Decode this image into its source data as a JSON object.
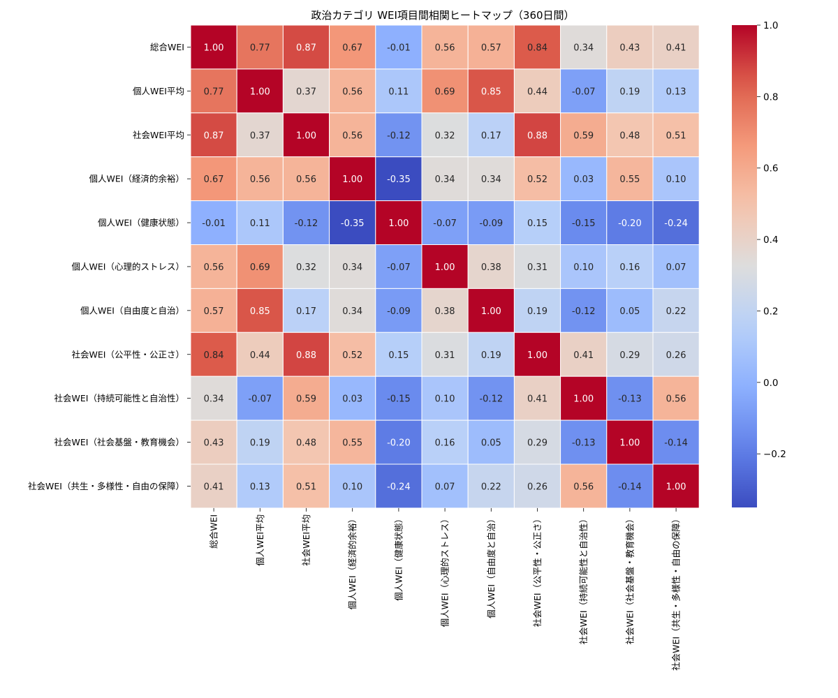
{
  "chart_data": {
    "type": "heatmap",
    "title": "政治カテゴリ WEI項目間相関ヒートマップ（360日間）",
    "labels": [
      "総合WEI",
      "個人WEI平均",
      "社会WEI平均",
      "個人WEI（経済的余裕）",
      "個人WEI（健康状態）",
      "個人WEI（心理的ストレス）",
      "個人WEI（自由度と自治）",
      "社会WEI（公平性・公正さ）",
      "社会WEI（持続可能性と自治性）",
      "社会WEI（社会基盤・教育機会）",
      "社会WEI（共生・多様性・自由の保障）"
    ],
    "matrix": [
      [
        1.0,
        0.77,
        0.87,
        0.67,
        -0.01,
        0.56,
        0.57,
        0.84,
        0.34,
        0.43,
        0.41
      ],
      [
        0.77,
        1.0,
        0.37,
        0.56,
        0.11,
        0.69,
        0.85,
        0.44,
        -0.07,
        0.19,
        0.13
      ],
      [
        0.87,
        0.37,
        1.0,
        0.56,
        -0.12,
        0.32,
        0.17,
        0.88,
        0.59,
        0.48,
        0.51
      ],
      [
        0.67,
        0.56,
        0.56,
        1.0,
        -0.35,
        0.34,
        0.34,
        0.52,
        0.03,
        0.55,
        0.1
      ],
      [
        -0.01,
        0.11,
        -0.12,
        -0.35,
        1.0,
        -0.07,
        -0.09,
        0.15,
        -0.15,
        -0.2,
        -0.24
      ],
      [
        0.56,
        0.69,
        0.32,
        0.34,
        -0.07,
        1.0,
        0.38,
        0.31,
        0.1,
        0.16,
        0.07
      ],
      [
        0.57,
        0.85,
        0.17,
        0.34,
        -0.09,
        0.38,
        1.0,
        0.19,
        -0.12,
        0.05,
        0.22
      ],
      [
        0.84,
        0.44,
        0.88,
        0.52,
        0.15,
        0.31,
        0.19,
        1.0,
        0.41,
        0.29,
        0.26
      ],
      [
        0.34,
        -0.07,
        0.59,
        0.03,
        -0.15,
        0.1,
        -0.12,
        0.41,
        1.0,
        -0.13,
        0.56
      ],
      [
        0.43,
        0.19,
        0.48,
        0.55,
        -0.2,
        0.16,
        0.05,
        0.29,
        -0.13,
        1.0,
        -0.14
      ],
      [
        0.41,
        0.13,
        0.51,
        0.1,
        -0.24,
        0.07,
        0.22,
        0.26,
        0.56,
        -0.14,
        1.0
      ]
    ],
    "colormap": "coolwarm",
    "vmin": -0.35,
    "vmax": 1.0,
    "colorbar_ticks": [
      1.0,
      0.8,
      0.6,
      0.4,
      0.2,
      0.0,
      -0.2
    ],
    "colorbar_tick_labels": [
      "1.0",
      "0.8",
      "0.6",
      "0.4",
      "0.2",
      "0.0",
      "−0.2"
    ],
    "annotation_format": "0.00"
  }
}
